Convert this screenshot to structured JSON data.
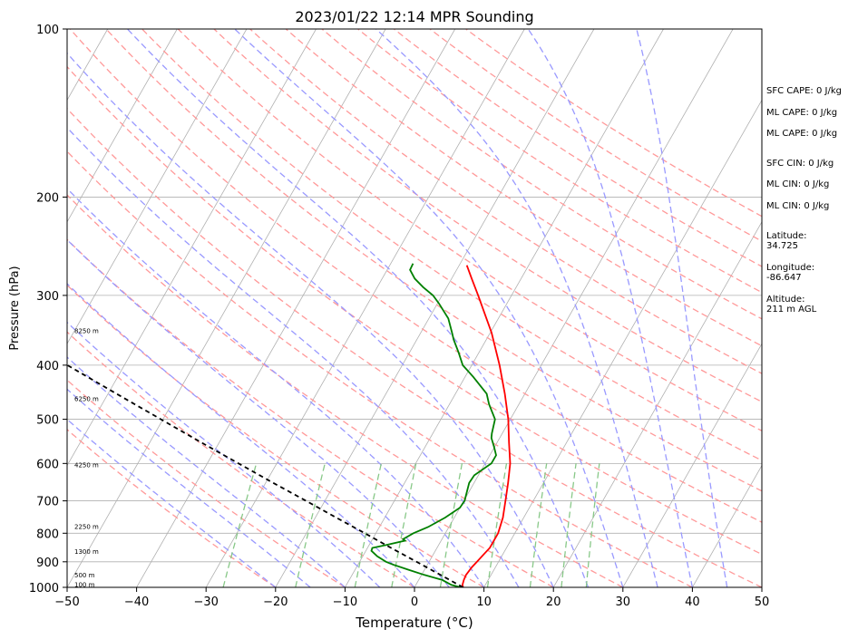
{
  "chart_data": {
    "type": "line",
    "title": "2023/01/22 12:14 MPR Sounding",
    "xlabel": "Temperature (°C)",
    "ylabel": "Pressure (hPa)",
    "xlim": [
      -50,
      50
    ],
    "ylim": [
      1000,
      100
    ],
    "y_scale": "log",
    "x_ticks": [
      "−50",
      "−40",
      "−30",
      "−20",
      "−10",
      "0",
      "10",
      "20",
      "30",
      "40",
      "50"
    ],
    "y_ticks": [
      "100",
      "200",
      "300",
      "400",
      "500",
      "600",
      "700",
      "800",
      "900",
      "1000"
    ],
    "height_labels": [
      {
        "p": 990,
        "text": "100 m"
      },
      {
        "p": 953,
        "text": "500 m"
      },
      {
        "p": 865,
        "text": "1300 m"
      },
      {
        "p": 780,
        "text": "2250 m"
      },
      {
        "p": 605,
        "text": "4250 m"
      },
      {
        "p": 460,
        "text": "6250 m"
      },
      {
        "p": 348,
        "text": "8250 m"
      }
    ],
    "series": [
      {
        "key": "temperature",
        "color": "#ff0000",
        "points": [
          {
            "p": 1000,
            "t": 7.0
          },
          {
            "p": 990,
            "t": 6.7
          },
          {
            "p": 970,
            "t": 6.5
          },
          {
            "p": 950,
            "t": 6.4
          },
          {
            "p": 920,
            "t": 6.6
          },
          {
            "p": 900,
            "t": 6.9
          },
          {
            "p": 870,
            "t": 7.3
          },
          {
            "p": 850,
            "t": 7.6
          },
          {
            "p": 800,
            "t": 7.6
          },
          {
            "p": 750,
            "t": 7.0
          },
          {
            "p": 700,
            "t": 6.0
          },
          {
            "p": 650,
            "t": 4.9
          },
          {
            "p": 600,
            "t": 3.6
          },
          {
            "p": 550,
            "t": 1.7
          },
          {
            "p": 500,
            "t": -0.3
          },
          {
            "p": 450,
            "t": -2.9
          },
          {
            "p": 400,
            "t": -6.0
          },
          {
            "p": 350,
            "t": -9.8
          },
          {
            "p": 300,
            "t": -14.8
          },
          {
            "p": 280,
            "t": -17.1
          },
          {
            "p": 265,
            "t": -18.9
          }
        ]
      },
      {
        "key": "dewpoint",
        "color": "#008000",
        "points": [
          {
            "p": 1000,
            "t": 6.6
          },
          {
            "p": 990,
            "t": 5.1
          },
          {
            "p": 970,
            "t": 3.4
          },
          {
            "p": 950,
            "t": 0.4
          },
          {
            "p": 930,
            "t": -2.3
          },
          {
            "p": 910,
            "t": -5.0
          },
          {
            "p": 900,
            "t": -6.2
          },
          {
            "p": 880,
            "t": -7.9
          },
          {
            "p": 860,
            "t": -9.2
          },
          {
            "p": 850,
            "t": -9.3
          },
          {
            "p": 840,
            "t": -7.6
          },
          {
            "p": 825,
            "t": -5.2
          },
          {
            "p": 820,
            "t": -5.6
          },
          {
            "p": 800,
            "t": -4.6
          },
          {
            "p": 780,
            "t": -3.0
          },
          {
            "p": 750,
            "t": -1.3
          },
          {
            "p": 720,
            "t": 0.0
          },
          {
            "p": 700,
            "t": 0.1
          },
          {
            "p": 650,
            "t": -0.7
          },
          {
            "p": 630,
            "t": -0.6
          },
          {
            "p": 600,
            "t": 0.9
          },
          {
            "p": 580,
            "t": 0.9
          },
          {
            "p": 560,
            "t": -0.1
          },
          {
            "p": 540,
            "t": -1.2
          },
          {
            "p": 530,
            "t": -1.5
          },
          {
            "p": 500,
            "t": -2.2
          },
          {
            "p": 470,
            "t": -4.3
          },
          {
            "p": 450,
            "t": -5.5
          },
          {
            "p": 420,
            "t": -8.8
          },
          {
            "p": 400,
            "t": -11.3
          },
          {
            "p": 380,
            "t": -12.9
          },
          {
            "p": 360,
            "t": -14.7
          },
          {
            "p": 350,
            "t": -15.5
          },
          {
            "p": 330,
            "t": -17.2
          },
          {
            "p": 310,
            "t": -19.8
          },
          {
            "p": 300,
            "t": -21.3
          },
          {
            "p": 290,
            "t": -23.4
          },
          {
            "p": 280,
            "t": -25.3
          },
          {
            "p": 270,
            "t": -26.7
          },
          {
            "p": 263,
            "t": -26.8
          }
        ]
      },
      {
        "key": "parcel",
        "color": "#000000",
        "dash": "5,4",
        "points": [
          {
            "p": 1000,
            "t": 7.0
          },
          {
            "p": 960,
            "t": 3.6
          },
          {
            "p": 900,
            "t": -1.8
          },
          {
            "p": 850,
            "t": -6.6
          },
          {
            "p": 800,
            "t": -11.6
          },
          {
            "p": 750,
            "t": -17.0
          },
          {
            "p": 700,
            "t": -22.7
          },
          {
            "p": 650,
            "t": -28.9
          },
          {
            "p": 600,
            "t": -35.5
          },
          {
            "p": 550,
            "t": -42.6
          },
          {
            "p": 500,
            "t": -50.3
          },
          {
            "p": 450,
            "t": -58.8
          },
          {
            "p": 400,
            "t": -68.2
          },
          {
            "p": 350,
            "t": -78.8
          },
          {
            "p": 300,
            "t": -91.2
          },
          {
            "p": 265,
            "t": -101.0
          }
        ]
      }
    ]
  },
  "side_panel": {
    "sfc_cape": "SFC CAPE: 0 J/kg",
    "ml_cape_1": "ML CAPE: 0 J/kg",
    "ml_cape_2": "ML CAPE: 0 J/kg",
    "sfc_cin": "SFC CIN: 0 J/kg",
    "ml_cin_1": "ML CIN: 0 J/kg",
    "ml_cin_2": "ML CIN: 0 J/kg",
    "latitude_label": "Latitude:",
    "latitude_value": "34.725",
    "longitude_label": "Longitude:",
    "longitude_value": "-86.647",
    "altitude_label": "Altitude:",
    "altitude_value": "211 m AGL"
  },
  "colors": {
    "isotherm": "#b0b0b0",
    "isobar": "#b0b0b0",
    "dry_adiabat": "#ff9999",
    "moist_adiabat": "#9999ff",
    "mixing_ratio": "#88c888"
  }
}
